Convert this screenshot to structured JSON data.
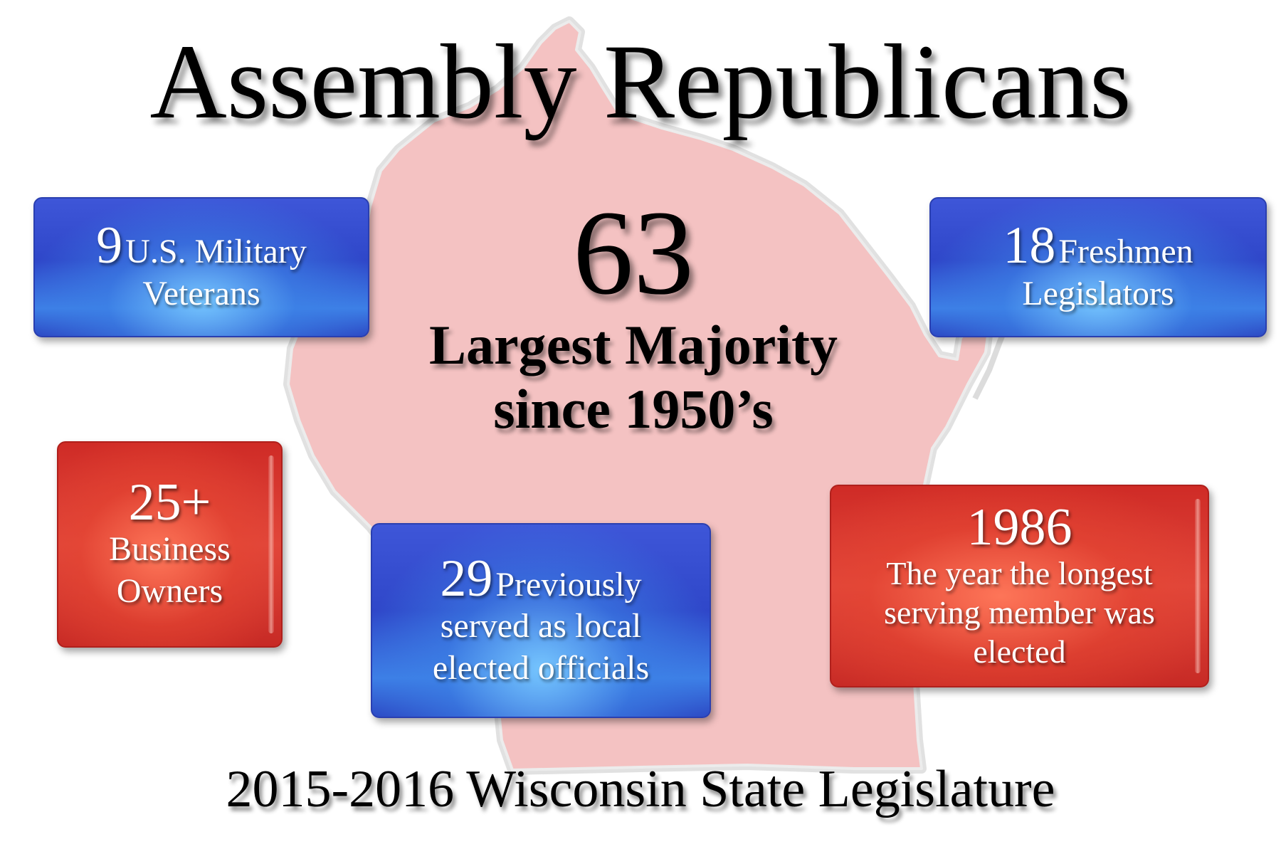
{
  "title": "Assembly Republicans",
  "center": {
    "number": "63",
    "line1": "Largest Majority",
    "line2": "since 1950’s"
  },
  "stats": {
    "veterans": {
      "number": "9",
      "label1": "U.S. Military",
      "label2": "Veterans"
    },
    "freshmen": {
      "number": "18",
      "label1": "Freshmen",
      "label2": "Legislators"
    },
    "business": {
      "number": "25+",
      "label1": "Business",
      "label2": "Owners"
    },
    "officials": {
      "number": "29",
      "label1": "Previously",
      "label2": "served as local",
      "label3": "elected officials"
    },
    "longest": {
      "number": "1986",
      "label1": "The year the longest",
      "label2": "serving member was",
      "label3": "elected"
    }
  },
  "footer": "2015-2016 Wisconsin State Legislature",
  "colors": {
    "map_fill": "#f4c2c2",
    "map_outline": "#d9d9d9",
    "blue_box": "#3a55d6",
    "red_box": "#d83a30",
    "text": "#000000"
  }
}
